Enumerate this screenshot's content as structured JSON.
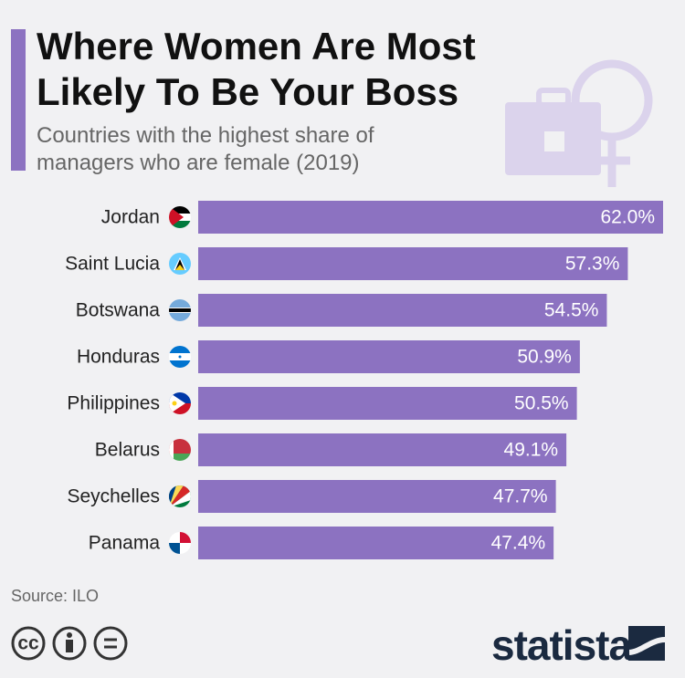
{
  "title": "Where Women Are Most Likely To Be Your Boss",
  "subtitle": "Countries with the highest share of managers who are female (2019)",
  "source": "Source: ILO",
  "logo": "statista",
  "chart_data": {
    "type": "bar",
    "orientation": "horizontal",
    "categories": [
      "Jordan",
      "Saint Lucia",
      "Botswana",
      "Honduras",
      "Philippines",
      "Belarus",
      "Seychelles",
      "Panama"
    ],
    "values": [
      62.0,
      57.3,
      54.5,
      50.9,
      50.5,
      49.1,
      47.7,
      47.4
    ],
    "value_labels": [
      "62.0%",
      "57.3%",
      "54.5%",
      "50.9%",
      "50.5%",
      "49.1%",
      "47.7%",
      "47.4%"
    ],
    "color": "#8c72c1"
  }
}
